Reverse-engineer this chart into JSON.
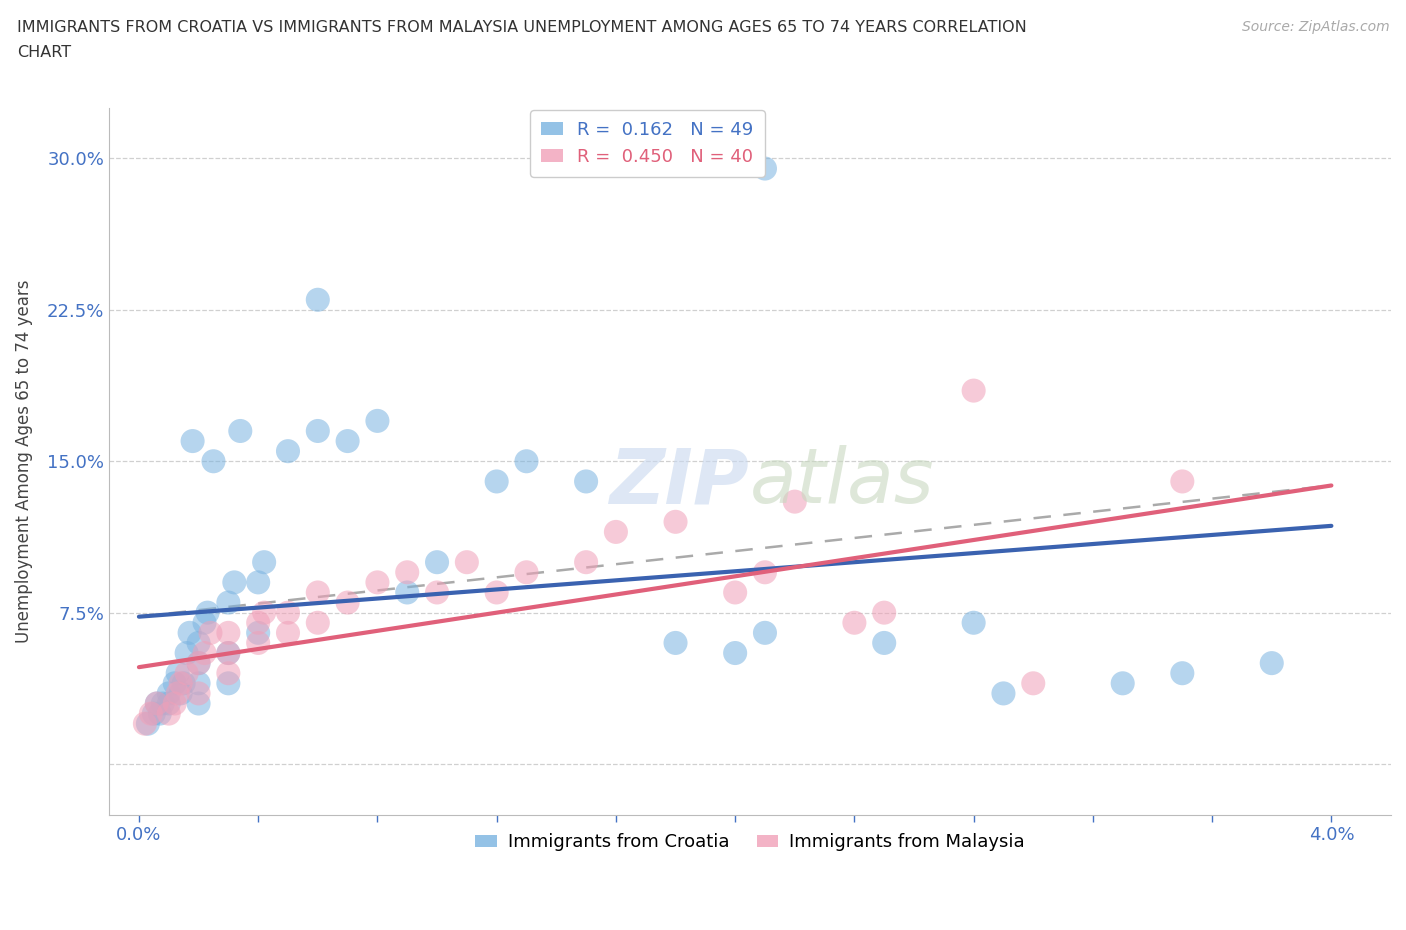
{
  "title_line1": "IMMIGRANTS FROM CROATIA VS IMMIGRANTS FROM MALAYSIA UNEMPLOYMENT AMONG AGES 65 TO 74 YEARS CORRELATION",
  "title_line2": "CHART",
  "source": "Source: ZipAtlas.com",
  "ylabel": "Unemployment Among Ages 65 to 74 years",
  "xlim": [
    -0.001,
    0.042
  ],
  "ylim": [
    -0.025,
    0.325
  ],
  "xticks": [
    0.0,
    0.004,
    0.008,
    0.012,
    0.016,
    0.02,
    0.024,
    0.028,
    0.032,
    0.036,
    0.04
  ],
  "xtick_labels": [
    "0.0%",
    "",
    "",
    "",
    "",
    "",
    "",
    "",
    "",
    "",
    "4.0%"
  ],
  "yticks": [
    0.0,
    0.075,
    0.15,
    0.225,
    0.3
  ],
  "ytick_labels": [
    "",
    "7.5%",
    "15.0%",
    "22.5%",
    "30.0%"
  ],
  "croatia_color": "#7ab3e0",
  "malaysia_color": "#f0a0b8",
  "croatia_line_color": "#3a62b0",
  "malaysia_line_color": "#e0607a",
  "grid_color": "#d0d0d0",
  "background_color": "#ffffff",
  "croatia_R": "0.162",
  "croatia_N": "49",
  "malaysia_R": "0.450",
  "malaysia_N": "40",
  "croatia_scatter_x": [
    0.0003,
    0.0005,
    0.0006,
    0.0007,
    0.0008,
    0.001,
    0.001,
    0.0012,
    0.0013,
    0.0014,
    0.0015,
    0.0016,
    0.0017,
    0.0018,
    0.002,
    0.002,
    0.002,
    0.002,
    0.0022,
    0.0023,
    0.0025,
    0.003,
    0.003,
    0.003,
    0.0032,
    0.0034,
    0.004,
    0.004,
    0.0042,
    0.005,
    0.006,
    0.006,
    0.007,
    0.008,
    0.009,
    0.01,
    0.012,
    0.013,
    0.015,
    0.018,
    0.02,
    0.021,
    0.021,
    0.025,
    0.028,
    0.029,
    0.033,
    0.035,
    0.038
  ],
  "croatia_scatter_y": [
    0.02,
    0.025,
    0.03,
    0.025,
    0.03,
    0.03,
    0.035,
    0.04,
    0.045,
    0.035,
    0.04,
    0.055,
    0.065,
    0.16,
    0.03,
    0.04,
    0.05,
    0.06,
    0.07,
    0.075,
    0.15,
    0.04,
    0.055,
    0.08,
    0.09,
    0.165,
    0.065,
    0.09,
    0.1,
    0.155,
    0.165,
    0.23,
    0.16,
    0.17,
    0.085,
    0.1,
    0.14,
    0.15,
    0.14,
    0.06,
    0.055,
    0.065,
    0.295,
    0.06,
    0.07,
    0.035,
    0.04,
    0.045,
    0.05
  ],
  "malaysia_scatter_x": [
    0.0002,
    0.0004,
    0.0006,
    0.001,
    0.0012,
    0.0013,
    0.0014,
    0.0016,
    0.002,
    0.002,
    0.0022,
    0.0024,
    0.003,
    0.003,
    0.003,
    0.004,
    0.004,
    0.0042,
    0.005,
    0.005,
    0.006,
    0.006,
    0.007,
    0.008,
    0.009,
    0.01,
    0.011,
    0.012,
    0.013,
    0.015,
    0.016,
    0.018,
    0.02,
    0.021,
    0.022,
    0.024,
    0.025,
    0.028,
    0.03,
    0.035
  ],
  "malaysia_scatter_y": [
    0.02,
    0.025,
    0.03,
    0.025,
    0.03,
    0.035,
    0.04,
    0.045,
    0.035,
    0.05,
    0.055,
    0.065,
    0.045,
    0.055,
    0.065,
    0.06,
    0.07,
    0.075,
    0.065,
    0.075,
    0.07,
    0.085,
    0.08,
    0.09,
    0.095,
    0.085,
    0.1,
    0.085,
    0.095,
    0.1,
    0.115,
    0.12,
    0.085,
    0.095,
    0.13,
    0.07,
    0.075,
    0.185,
    0.04,
    0.14
  ],
  "croatia_line_x": [
    0.0,
    0.04
  ],
  "croatia_line_y": [
    0.073,
    0.118
  ],
  "malaysia_line_x": [
    0.0,
    0.04
  ],
  "malaysia_line_y": [
    0.048,
    0.138
  ],
  "dashed_line_x": [
    0.0,
    0.04
  ],
  "dashed_line_y": [
    0.073,
    0.138
  ]
}
